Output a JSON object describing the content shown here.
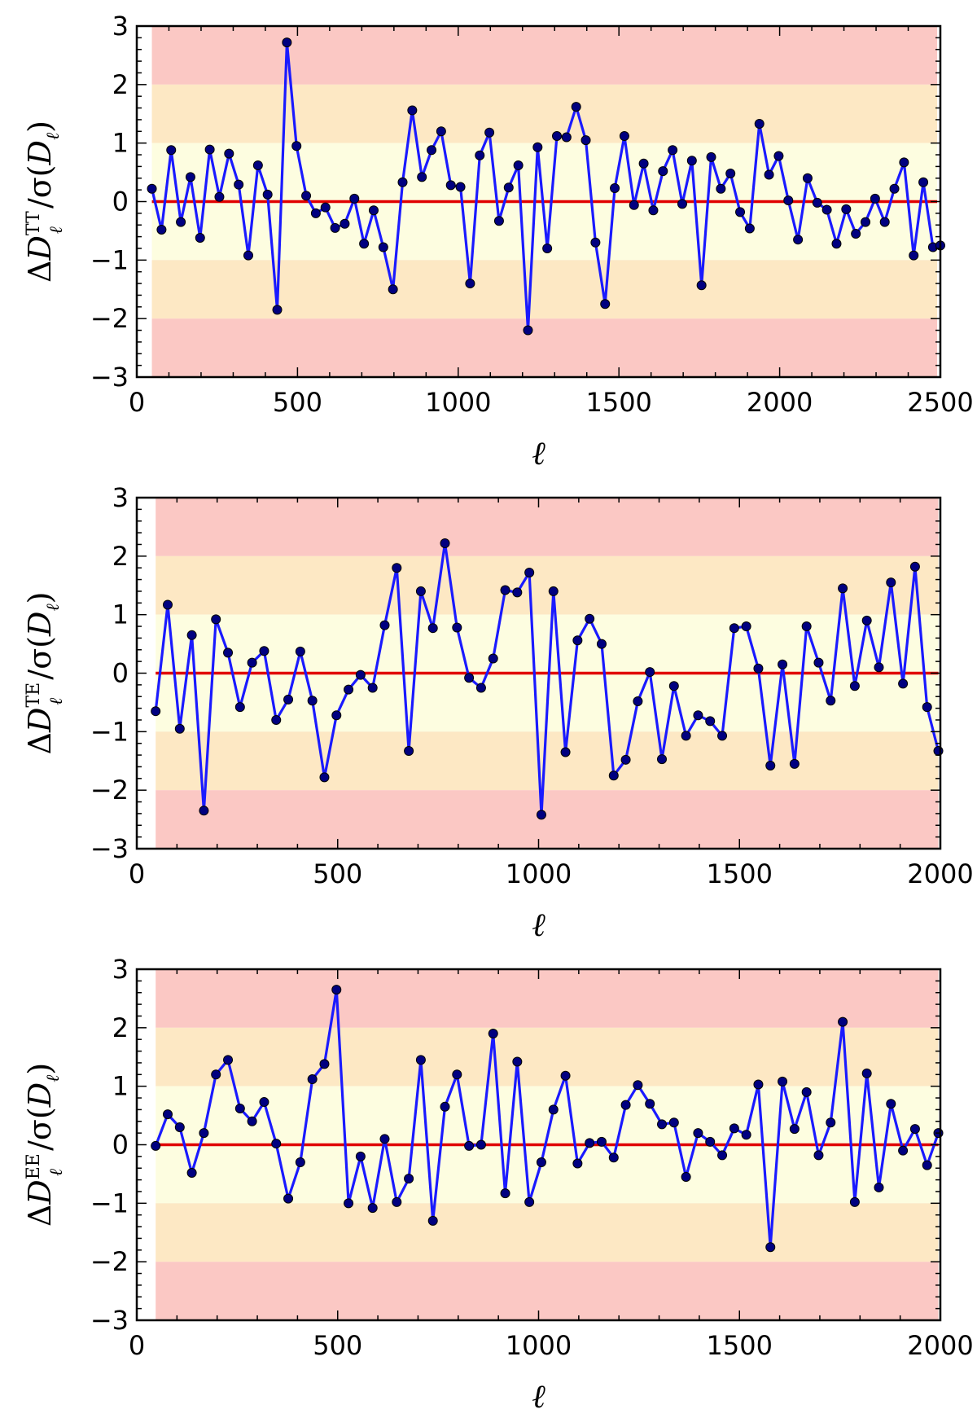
{
  "chart_data": [
    {
      "type": "line",
      "id": "tt",
      "title": "",
      "xlabel": "ℓ",
      "ylabel": "ΔD_ℓ^TT / σ(D_ℓ)",
      "ylabel_parts": {
        "delta": "Δ",
        "D": "D",
        "sup": "TT",
        "sub": "ℓ",
        "mid": " /σ(",
        "D2": "D",
        "sub2": "ℓ",
        "close": ")"
      },
      "xlim": [
        0,
        2500
      ],
      "ylim": [
        -3,
        3
      ],
      "xticks": [
        0,
        500,
        1000,
        1500,
        2000,
        2500
      ],
      "yticks": [
        -3,
        -2,
        -1,
        0,
        1,
        2,
        3
      ],
      "bands": {
        "x_start": 47,
        "x_end": 2490,
        "inner": 1,
        "middle": 2
      },
      "colors": {
        "inner": "#fdfde0",
        "middle": "#fde8c4",
        "outer": "#fbc8c4",
        "line": "#1a1aff",
        "zero": "#e00000",
        "marker": "#000080"
      },
      "x": [
        47,
        77,
        107,
        137,
        167,
        197,
        227,
        257,
        287,
        317,
        347,
        377,
        407,
        437,
        467,
        497,
        527,
        557,
        587,
        617,
        647,
        677,
        707,
        737,
        767,
        797,
        827,
        857,
        887,
        917,
        947,
        977,
        1007,
        1037,
        1067,
        1097,
        1127,
        1157,
        1187,
        1217,
        1247,
        1277,
        1307,
        1337,
        1367,
        1397,
        1427,
        1457,
        1487,
        1517,
        1547,
        1577,
        1607,
        1637,
        1667,
        1697,
        1727,
        1757,
        1787,
        1817,
        1847,
        1877,
        1907,
        1937,
        1967,
        1997,
        2027,
        2057,
        2087,
        2117,
        2147,
        2177,
        2207,
        2237,
        2267,
        2297,
        2327,
        2357,
        2387,
        2417,
        2447,
        2477,
        2500
      ],
      "y": [
        0.22,
        -0.48,
        0.88,
        -0.35,
        0.42,
        -0.62,
        0.89,
        0.08,
        0.82,
        0.29,
        -0.92,
        0.62,
        0.12,
        -1.85,
        2.72,
        0.95,
        0.1,
        -0.2,
        -0.1,
        -0.45,
        -0.38,
        0.05,
        -0.72,
        -0.15,
        -0.78,
        -1.5,
        0.33,
        1.56,
        0.42,
        0.88,
        1.2,
        0.28,
        0.25,
        -1.4,
        0.79,
        1.18,
        -0.33,
        0.24,
        0.62,
        -2.2,
        0.93,
        -0.8,
        1.12,
        1.1,
        1.62,
        1.05,
        -0.7,
        -1.75,
        0.23,
        1.12,
        -0.06,
        0.65,
        -0.15,
        0.52,
        0.88,
        -0.04,
        0.7,
        -1.43,
        0.76,
        0.22,
        0.48,
        -0.18,
        -0.46,
        1.33,
        0.46,
        0.78,
        0.02,
        -0.65,
        0.4,
        -0.02,
        -0.14,
        -0.72,
        -0.13,
        -0.55,
        -0.35,
        0.05,
        -0.35,
        0.22,
        0.67,
        -0.92,
        0.33,
        -0.78,
        -0.75
      ]
    },
    {
      "type": "line",
      "id": "te",
      "title": "",
      "xlabel": "ℓ",
      "ylabel": "ΔD_ℓ^TE / σ(D_ℓ)",
      "ylabel_parts": {
        "delta": "Δ",
        "D": "D",
        "sup": "TE",
        "sub": "ℓ",
        "mid": " /σ(",
        "D2": "D",
        "sub2": "ℓ",
        "close": ")"
      },
      "xlim": [
        0,
        2000
      ],
      "ylim": [
        -3,
        3
      ],
      "xticks": [
        0,
        500,
        1000,
        1500,
        2000
      ],
      "yticks": [
        -3,
        -2,
        -1,
        0,
        1,
        2,
        3
      ],
      "bands": {
        "x_start": 47,
        "x_end": 1995,
        "inner": 1,
        "middle": 2
      },
      "colors": {
        "inner": "#fdfde0",
        "middle": "#fde8c4",
        "outer": "#fbc8c4",
        "line": "#1a1aff",
        "zero": "#e00000",
        "marker": "#000080"
      },
      "x": [
        47,
        77,
        107,
        137,
        167,
        197,
        227,
        257,
        287,
        317,
        347,
        377,
        407,
        437,
        467,
        497,
        527,
        557,
        587,
        617,
        647,
        677,
        707,
        737,
        767,
        797,
        827,
        857,
        887,
        917,
        947,
        977,
        1007,
        1037,
        1067,
        1097,
        1127,
        1157,
        1187,
        1217,
        1247,
        1277,
        1307,
        1337,
        1367,
        1397,
        1427,
        1457,
        1487,
        1517,
        1547,
        1577,
        1607,
        1637,
        1667,
        1697,
        1727,
        1757,
        1787,
        1817,
        1847,
        1877,
        1907,
        1937,
        1967,
        1995
      ],
      "y": [
        -0.65,
        1.17,
        -0.95,
        0.65,
        -2.35,
        0.92,
        0.35,
        -0.58,
        0.18,
        0.38,
        -0.8,
        -0.45,
        0.37,
        -0.47,
        -1.78,
        -0.72,
        -0.28,
        -0.03,
        -0.25,
        0.82,
        1.8,
        -1.33,
        1.4,
        0.77,
        2.22,
        0.78,
        -0.08,
        -0.25,
        0.25,
        1.42,
        1.38,
        1.72,
        -2.42,
        1.4,
        -1.35,
        0.56,
        0.93,
        0.5,
        -1.75,
        -1.48,
        -0.48,
        0.02,
        -1.47,
        -0.22,
        -1.07,
        -0.72,
        -0.82,
        -1.07,
        0.77,
        0.8,
        0.08,
        -1.58,
        0.15,
        -1.55,
        0.8,
        0.18,
        -0.47,
        1.45,
        -0.22,
        0.9,
        0.1,
        1.55,
        -0.18,
        1.82,
        -0.58,
        -1.33
      ]
    },
    {
      "type": "line",
      "id": "ee",
      "title": "",
      "xlabel": "ℓ",
      "ylabel": "ΔD_ℓ^EE / σ(D_ℓ)",
      "ylabel_parts": {
        "delta": "Δ",
        "D": "D",
        "sup": "EE",
        "sub": "ℓ",
        "mid": " /σ(",
        "D2": "D",
        "sub2": "ℓ",
        "close": ")"
      },
      "xlim": [
        0,
        2000
      ],
      "ylim": [
        -3,
        3
      ],
      "xticks": [
        0,
        500,
        1000,
        1500,
        2000
      ],
      "yticks": [
        -3,
        -2,
        -1,
        0,
        1,
        2,
        3
      ],
      "bands": {
        "x_start": 47,
        "x_end": 1995,
        "inner": 1,
        "middle": 2
      },
      "colors": {
        "inner": "#fdfde0",
        "middle": "#fde8c4",
        "outer": "#fbc8c4",
        "line": "#1a1aff",
        "zero": "#e00000",
        "marker": "#000080"
      },
      "x": [
        47,
        77,
        107,
        137,
        167,
        197,
        227,
        257,
        287,
        317,
        347,
        377,
        407,
        437,
        467,
        497,
        527,
        557,
        587,
        617,
        647,
        677,
        707,
        737,
        767,
        797,
        827,
        857,
        887,
        917,
        947,
        977,
        1007,
        1037,
        1067,
        1097,
        1127,
        1157,
        1187,
        1217,
        1247,
        1277,
        1307,
        1337,
        1367,
        1397,
        1427,
        1457,
        1487,
        1517,
        1547,
        1577,
        1607,
        1637,
        1667,
        1697,
        1727,
        1757,
        1787,
        1817,
        1847,
        1877,
        1907,
        1937,
        1967,
        1995
      ],
      "y": [
        -0.02,
        0.52,
        0.3,
        -0.48,
        0.2,
        1.2,
        1.45,
        0.62,
        0.4,
        0.73,
        0.02,
        -0.92,
        -0.3,
        1.12,
        1.38,
        2.65,
        -1.0,
        -0.2,
        -1.08,
        0.1,
        -0.98,
        -0.58,
        1.45,
        -1.3,
        0.65,
        1.2,
        -0.02,
        0.0,
        1.9,
        -0.83,
        1.42,
        -0.98,
        -0.3,
        0.6,
        1.18,
        -0.32,
        0.03,
        0.05,
        -0.22,
        0.68,
        1.02,
        0.7,
        0.35,
        0.38,
        -0.55,
        0.2,
        0.05,
        -0.18,
        0.28,
        0.17,
        1.03,
        -1.75,
        1.08,
        0.27,
        0.9,
        -0.18,
        0.38,
        2.1,
        -0.98,
        1.22,
        -0.73,
        0.7,
        -0.1,
        0.27,
        -0.35,
        0.2
      ]
    }
  ]
}
